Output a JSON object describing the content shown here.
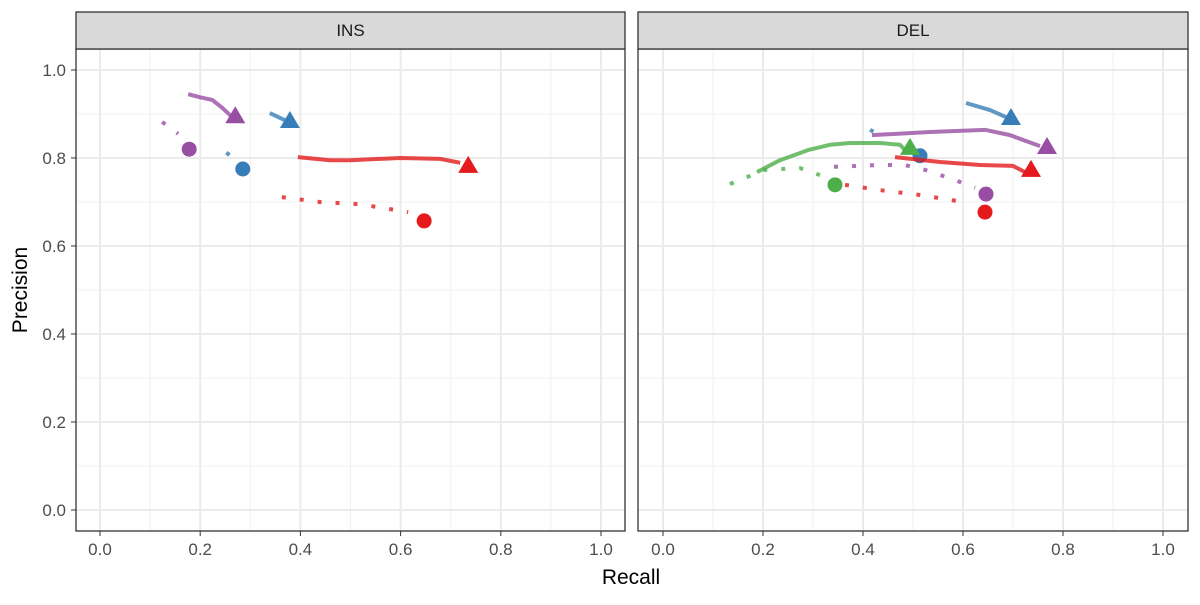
{
  "chart_data": {
    "type": "line",
    "xlabel": "Recall",
    "ylabel": "Precision",
    "xlim": [
      0,
      1
    ],
    "ylim": [
      0,
      1
    ],
    "x_ticks": [
      "0.0",
      "0.2",
      "0.4",
      "0.6",
      "0.8",
      "1.0"
    ],
    "y_ticks": [
      "0.0",
      "0.2",
      "0.4",
      "0.6",
      "0.8",
      "1.0"
    ],
    "grid": true,
    "colors": {
      "red": "#E41A1C",
      "blue": "#377EB8",
      "green": "#4DAF4A",
      "purple": "#984EA3"
    },
    "panels": [
      {
        "title": "INS",
        "series": [
          {
            "color": "purple",
            "style": "solid",
            "points": [
              [
                0.176,
                0.945
              ],
              [
                0.2,
                0.938
              ],
              [
                0.224,
                0.932
              ],
              [
                0.244,
                0.914
              ],
              [
                0.26,
                0.897
              ]
            ],
            "end_marker": "triangle",
            "end": [
              0.27,
              0.895
            ]
          },
          {
            "color": "purple",
            "style": "dotted",
            "points": [
              [
                0.124,
                0.882
              ],
              [
                0.156,
                0.855
              ]
            ],
            "end_marker": "circle",
            "end": [
              0.178,
              0.82
            ]
          },
          {
            "color": "blue",
            "style": "solid",
            "points": [
              [
                0.339,
                0.902
              ],
              [
                0.369,
                0.886
              ]
            ],
            "end_marker": "triangle",
            "end": [
              0.379,
              0.884
            ]
          },
          {
            "color": "blue",
            "style": "dotted",
            "points": [
              [
                0.252,
                0.812
              ],
              [
                0.26,
                0.806
              ]
            ],
            "end_marker": "circle",
            "end": [
              0.285,
              0.775
            ]
          },
          {
            "color": "red",
            "style": "solid",
            "points": [
              [
                0.395,
                0.802
              ],
              [
                0.459,
                0.795
              ],
              [
                0.499,
                0.795
              ],
              [
                0.599,
                0.8
              ],
              [
                0.679,
                0.798
              ],
              [
                0.719,
                0.789
              ]
            ],
            "end_marker": "triangle",
            "end": [
              0.735,
              0.782
            ]
          },
          {
            "color": "red",
            "style": "dotted",
            "points": [
              [
                0.363,
                0.711
              ],
              [
                0.439,
                0.7
              ],
              [
                0.519,
                0.695
              ],
              [
                0.615,
                0.677
              ]
            ],
            "end_marker": "circle",
            "end": [
              0.647,
              0.657
            ]
          }
        ]
      },
      {
        "title": "DEL",
        "series": [
          {
            "color": "blue",
            "style": "solid",
            "points": [
              [
                0.606,
                0.925
              ],
              [
                0.654,
                0.909
              ],
              [
                0.69,
                0.891
              ]
            ],
            "end_marker": "triangle",
            "end": [
              0.696,
              0.891
            ]
          },
          {
            "color": "blue",
            "style": "dotted",
            "points": [
              [
                0.414,
                0.864
              ],
              [
                0.446,
                0.845
              ]
            ],
            "end_marker": "circle",
            "end": [
              0.514,
              0.805
            ]
          },
          {
            "color": "purple",
            "style": "solid",
            "points": [
              [
                0.418,
                0.852
              ],
              [
                0.534,
                0.859
              ],
              [
                0.644,
                0.864
              ],
              [
                0.694,
                0.852
              ],
              [
                0.754,
                0.827
              ]
            ],
            "end_marker": "triangle",
            "end": [
              0.768,
              0.825
            ]
          },
          {
            "color": "purple",
            "style": "dotted",
            "points": [
              [
                0.342,
                0.78
              ],
              [
                0.434,
                0.784
              ],
              [
                0.484,
                0.784
              ],
              [
                0.524,
                0.773
              ],
              [
                0.584,
                0.75
              ],
              [
                0.624,
                0.732
              ]
            ],
            "end_marker": "circle",
            "end": [
              0.646,
              0.718
            ]
          },
          {
            "color": "green",
            "style": "solid",
            "points": [
              [
                0.188,
                0.768
              ],
              [
                0.234,
                0.795
              ],
              [
                0.29,
                0.818
              ],
              [
                0.334,
                0.83
              ],
              [
                0.374,
                0.834
              ],
              [
                0.434,
                0.834
              ],
              [
                0.474,
                0.83
              ],
              [
                0.484,
                0.818
              ]
            ],
            "end_marker": "triangle",
            "end": [
              0.494,
              0.823
            ]
          },
          {
            "color": "green",
            "style": "dotted",
            "points": [
              [
                0.134,
                0.741
              ],
              [
                0.204,
                0.773
              ],
              [
                0.274,
                0.777
              ],
              [
                0.314,
                0.761
              ]
            ],
            "end_marker": "circle",
            "end": [
              0.344,
              0.739
            ]
          },
          {
            "color": "red",
            "style": "solid",
            "points": [
              [
                0.464,
                0.802
              ],
              [
                0.554,
                0.791
              ],
              [
                0.634,
                0.784
              ],
              [
                0.7,
                0.782
              ],
              [
                0.724,
                0.768
              ]
            ],
            "end_marker": "triangle",
            "end": [
              0.736,
              0.773
            ]
          },
          {
            "color": "red",
            "style": "dotted",
            "points": [
              [
                0.364,
                0.739
              ],
              [
                0.434,
                0.727
              ],
              [
                0.514,
                0.716
              ],
              [
                0.574,
                0.705
              ],
              [
                0.608,
                0.698
              ]
            ],
            "end_marker": "circle",
            "end": [
              0.644,
              0.677
            ]
          }
        ]
      }
    ]
  }
}
